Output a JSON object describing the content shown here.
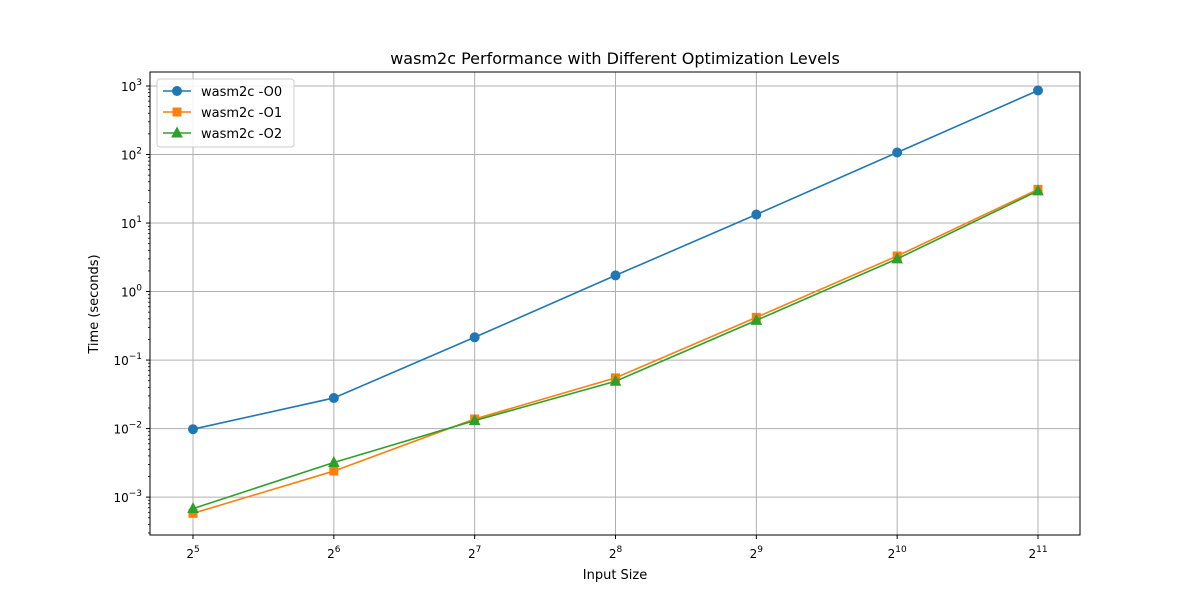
{
  "chart_data": {
    "type": "line",
    "title": "wasm2c Performance with Different Optimization Levels",
    "xlabel": "Input Size",
    "ylabel": "Time (seconds)",
    "xscale": "log2",
    "yscale": "log10",
    "x": [
      32,
      64,
      128,
      256,
      512,
      1024,
      2048
    ],
    "x_tick_labels": [
      {
        "base": "2",
        "exp": "5"
      },
      {
        "base": "2",
        "exp": "6"
      },
      {
        "base": "2",
        "exp": "7"
      },
      {
        "base": "2",
        "exp": "8"
      },
      {
        "base": "2",
        "exp": "9"
      },
      {
        "base": "2",
        "exp": "10"
      },
      {
        "base": "2",
        "exp": "11"
      }
    ],
    "y_ticks": [
      0.001,
      0.01,
      0.1,
      1,
      10,
      100,
      1000
    ],
    "y_tick_labels": [
      {
        "base": "10",
        "exp": "−3"
      },
      {
        "base": "10",
        "exp": "−2"
      },
      {
        "base": "10",
        "exp": "−1"
      },
      {
        "base": "10",
        "exp": "0"
      },
      {
        "base": "10",
        "exp": "1"
      },
      {
        "base": "10",
        "exp": "2"
      },
      {
        "base": "10",
        "exp": "3"
      }
    ],
    "ylim": [
      0.00028,
      1600
    ],
    "grid": true,
    "legend_position": "top-left",
    "series": [
      {
        "name": "wasm2c -O0",
        "color": "#1f77b4",
        "marker": "circle",
        "values": [
          0.0098,
          0.028,
          0.215,
          1.72,
          13.3,
          107,
          860
        ]
      },
      {
        "name": "wasm2c -O1",
        "color": "#ff7f0e",
        "marker": "square",
        "values": [
          0.00058,
          0.0024,
          0.0138,
          0.055,
          0.42,
          3.3,
          31
        ]
      },
      {
        "name": "wasm2c -O2",
        "color": "#2ca02c",
        "marker": "triangle",
        "values": [
          0.00068,
          0.0032,
          0.0131,
          0.049,
          0.38,
          3.0,
          29.5
        ]
      }
    ]
  }
}
